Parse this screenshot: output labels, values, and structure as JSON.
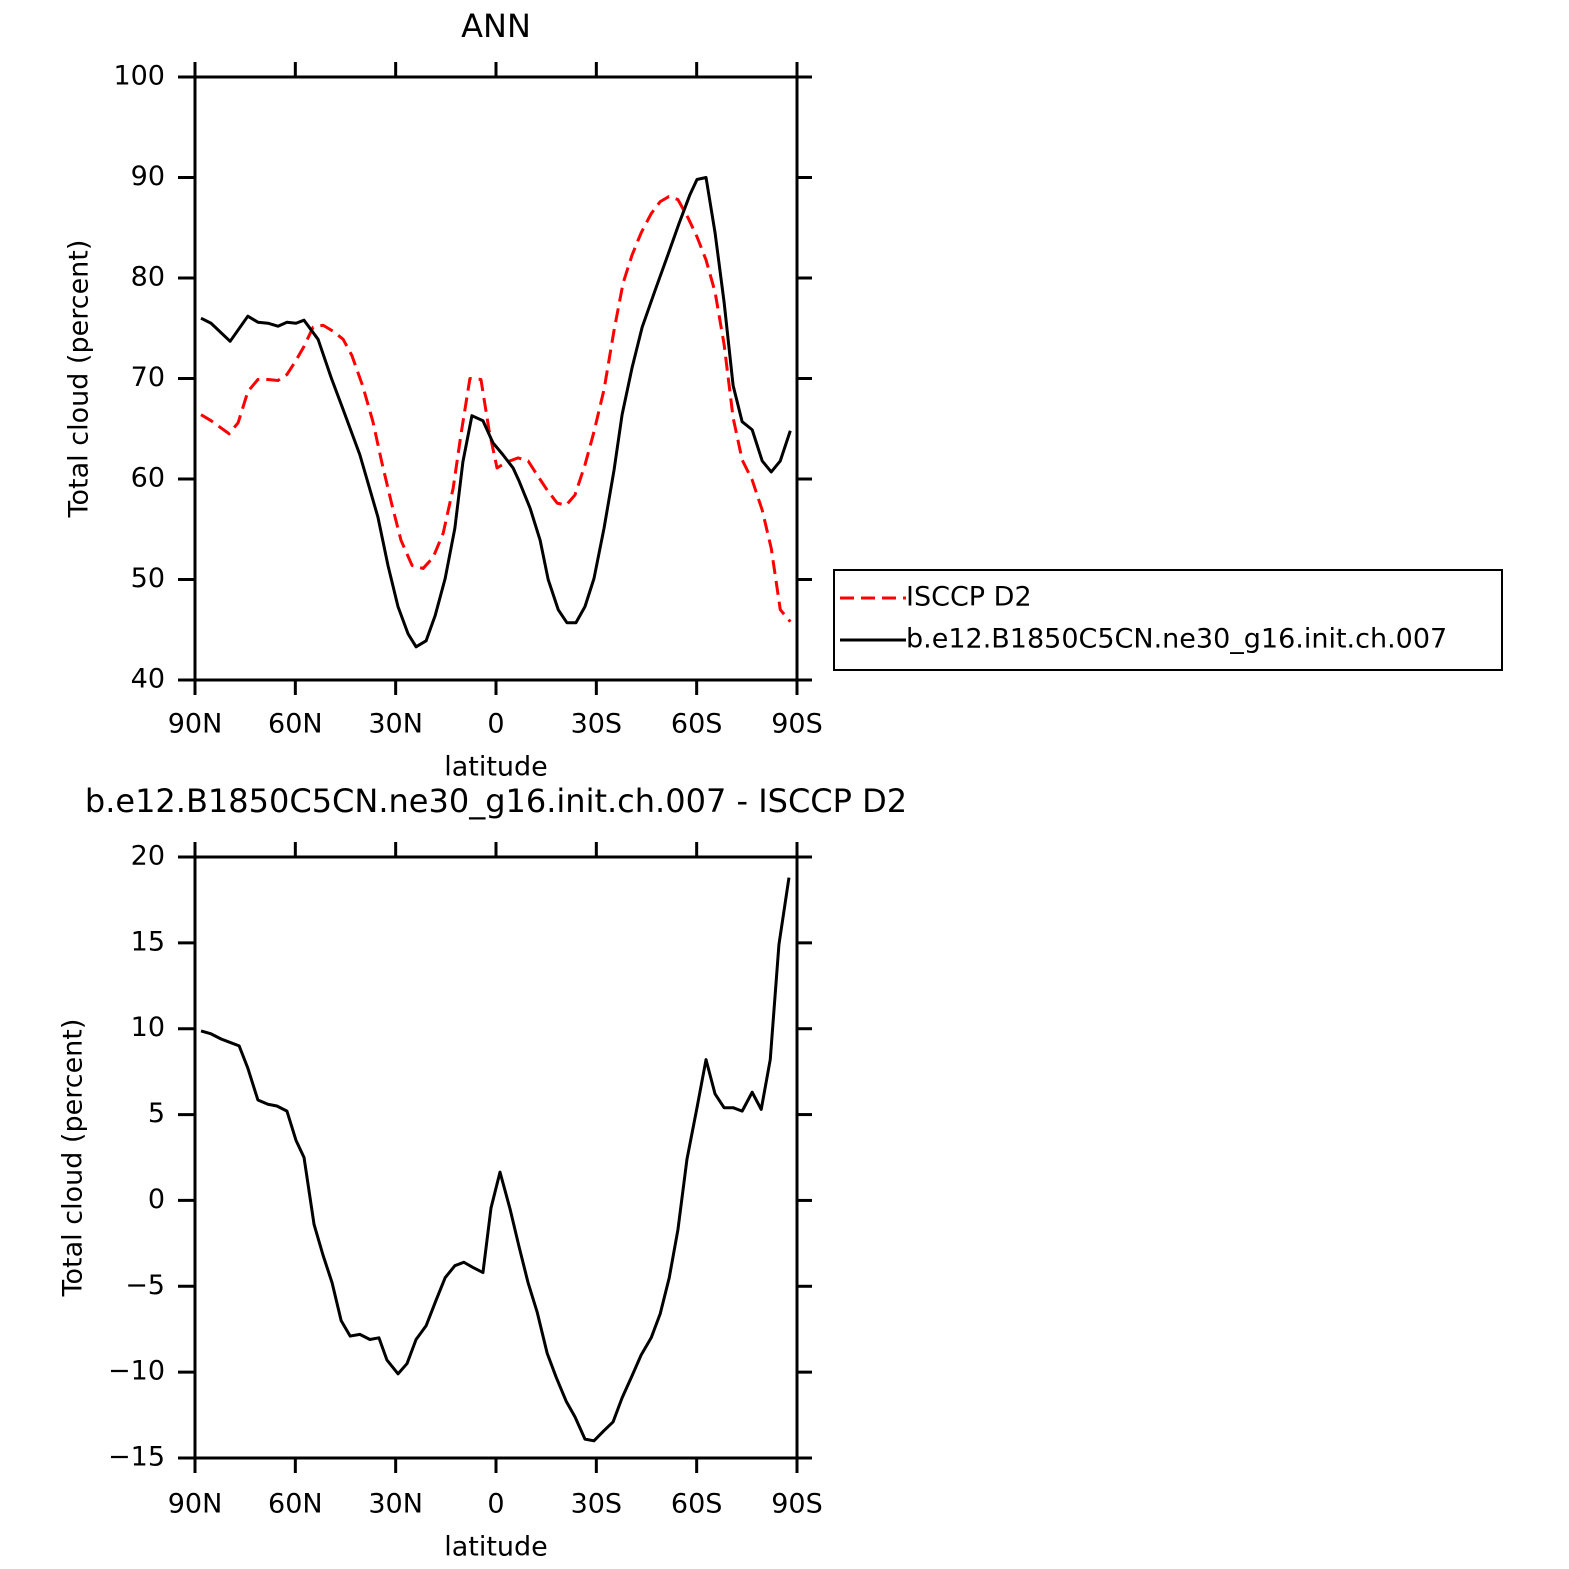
{
  "chart_data": [
    {
      "type": "line",
      "title": "ANN",
      "xlabel": "latitude",
      "ylabel": "Total cloud (percent)",
      "xlim": [
        90,
        -90
      ],
      "xticks": [
        {
          "value": 90,
          "label": "90N"
        },
        {
          "value": 60,
          "label": "60N"
        },
        {
          "value": 30,
          "label": "30N"
        },
        0,
        {
          "value": -30,
          "label": "30S"
        },
        {
          "value": -60,
          "label": "60S"
        },
        {
          "value": -90,
          "label": "90S"
        }
      ],
      "ylim": [
        40,
        100
      ],
      "yticks": [
        40,
        50,
        60,
        70,
        80,
        90,
        100
      ],
      "legend": "right",
      "series": [
        {
          "name": "ISCCP D2",
          "color": "#ff0000",
          "dashed": true,
          "x": [
            88.2,
            85.2,
            79.8,
            77.1,
            74.2,
            71.2,
            68.2,
            65.2,
            62.5,
            59.8,
            57.4,
            54.7,
            51.7,
            48.7,
            45.7,
            43.1,
            39.8,
            36.8,
            34.1,
            31.1,
            28.4,
            25.1,
            21.8,
            18.8,
            15.8,
            12.8,
            10.4,
            7.8,
            4.5,
            2.1,
            -0.3,
            -3.3,
            -6.6,
            -9.6,
            -12.3,
            -15.3,
            -18.3,
            -21.0,
            -23.6,
            -26.6,
            -29.3,
            -32.3,
            -35.3,
            -38.0,
            -40.7,
            -43.4,
            -46.4,
            -49.1,
            -51.7,
            -54.4,
            -57.4,
            -60.1,
            -62.8,
            -65.5,
            -68.2,
            -70.9,
            -73.6,
            -76.6,
            -79.6,
            -82.3,
            -85.0,
            -88.0
          ],
          "values": [
            66.4,
            65.8,
            64.5,
            65.6,
            68.7,
            69.9,
            69.9,
            69.8,
            70.4,
            71.8,
            73.2,
            75.1,
            75.3,
            74.7,
            73.9,
            72.3,
            69.2,
            65.7,
            61.6,
            57.4,
            53.9,
            51.4,
            51.1,
            52.2,
            54.6,
            59.1,
            64.6,
            70.0,
            69.9,
            64.9,
            61.1,
            61.7,
            62.1,
            61.8,
            60.4,
            58.9,
            57.6,
            57.4,
            58.4,
            61.4,
            64.7,
            68.9,
            74.8,
            79.5,
            82.3,
            84.5,
            86.4,
            87.6,
            88.1,
            87.8,
            86.0,
            84.1,
            81.8,
            78.6,
            73.4,
            66.1,
            61.9,
            59.9,
            56.9,
            53.1,
            47.0,
            45.8
          ]
        },
        {
          "name": "b.e12.B1850C5CN.ne30_g16.init.ch.007",
          "color": "#000000",
          "dashed": false,
          "x": [
            88.2,
            85.2,
            79.5,
            74.2,
            71.2,
            68.2,
            65.2,
            62.5,
            59.8,
            57.4,
            53.2,
            49.3,
            45.7,
            40.7,
            35.3,
            32.3,
            29.3,
            26.3,
            23.9,
            20.9,
            18.2,
            15.2,
            12.3,
            9.9,
            7.2,
            3.9,
            0.9,
            -2.1,
            -5.1,
            -6.9,
            -10.2,
            -13.2,
            -15.6,
            -18.6,
            -21.2,
            -23.9,
            -26.6,
            -29.3,
            -32.3,
            -35.3,
            -37.7,
            -40.7,
            -43.7,
            -47.6,
            -51.4,
            -54.7,
            -58.0,
            -60.1,
            -62.8,
            -65.5,
            -68.2,
            -70.9,
            -73.6,
            -76.6,
            -79.6,
            -82.3,
            -85.0,
            -88.0
          ],
          "values": [
            76.0,
            75.5,
            73.7,
            76.2,
            75.6,
            75.5,
            75.2,
            75.6,
            75.5,
            75.8,
            73.9,
            70.1,
            66.9,
            62.4,
            56.2,
            51.4,
            47.3,
            44.6,
            43.3,
            43.9,
            46.4,
            50.1,
            55.1,
            61.7,
            66.3,
            65.8,
            63.6,
            62.4,
            61.1,
            59.8,
            57.1,
            53.9,
            50.0,
            47.0,
            45.7,
            45.7,
            47.3,
            50.1,
            55.1,
            60.9,
            66.4,
            71.1,
            75.1,
            78.8,
            82.3,
            85.4,
            88.3,
            89.8,
            90.0,
            84.5,
            77.6,
            69.3,
            65.7,
            64.9,
            61.8,
            60.7,
            61.8,
            64.8
          ]
        }
      ]
    },
    {
      "type": "line",
      "title": "b.e12.B1850C5CN.ne30_g16.init.ch.007 - ISCCP D2",
      "xlabel": "latitude",
      "ylabel": "Total cloud (percent)",
      "xlim": [
        90,
        -90
      ],
      "xticks": [
        {
          "value": 90,
          "label": "90N"
        },
        {
          "value": 60,
          "label": "60N"
        },
        {
          "value": 30,
          "label": "30N"
        },
        0,
        {
          "value": -30,
          "label": "30S"
        },
        {
          "value": -60,
          "label": "60S"
        },
        {
          "value": -90,
          "label": "90S"
        }
      ],
      "ylim": [
        -15,
        20
      ],
      "yticks": [
        {
          "value": -15,
          "label": "−15"
        },
        {
          "value": -10,
          "label": "−10"
        },
        {
          "value": -5,
          "label": "−5"
        },
        0,
        5,
        10,
        15,
        20
      ],
      "x": [
        88.2,
        85.2,
        82.2,
        79.5,
        76.8,
        74.2,
        71.2,
        68.2,
        65.5,
        62.5,
        59.8,
        57.4,
        54.4,
        51.7,
        49.0,
        46.3,
        43.6,
        40.7,
        37.7,
        35.0,
        32.6,
        29.3,
        26.6,
        23.9,
        20.9,
        17.9,
        15.2,
        12.3,
        9.6,
        6.9,
        3.9,
        1.5,
        -1.2,
        -4.2,
        -6.9,
        -9.6,
        -12.3,
        -15.3,
        -18.0,
        -21.0,
        -23.6,
        -26.6,
        -29.3,
        -32.3,
        -35.0,
        -37.7,
        -40.7,
        -43.4,
        -46.4,
        -49.1,
        -51.8,
        -54.4,
        -57.1,
        -60.1,
        -62.8,
        -65.5,
        -68.2,
        -70.9,
        -73.6,
        -76.6,
        -79.3,
        -82.0,
        -84.6,
        -87.6
      ],
      "series": [
        {
          "color": "#000000",
          "dashed": false,
          "values": [
            9.87,
            9.7,
            9.4,
            9.2,
            9.0,
            7.7,
            5.85,
            5.6,
            5.5,
            5.2,
            3.5,
            2.5,
            -1.4,
            -3.2,
            -4.8,
            -7.0,
            -7.9,
            -7.8,
            -8.1,
            -8.0,
            -9.3,
            -10.1,
            -9.5,
            -8.1,
            -7.3,
            -5.8,
            -4.5,
            -3.8,
            -3.6,
            -3.9,
            -4.2,
            -0.45,
            1.65,
            -0.5,
            -2.7,
            -4.8,
            -6.5,
            -8.9,
            -10.3,
            -11.7,
            -12.6,
            -13.9,
            -14.0,
            -13.4,
            -12.9,
            -11.5,
            -10.2,
            -9.0,
            -8.0,
            -6.6,
            -4.5,
            -1.7,
            2.4,
            5.4,
            8.2,
            6.2,
            5.4,
            5.4,
            5.2,
            6.3,
            5.3,
            8.2,
            14.9,
            18.8
          ]
        }
      ]
    }
  ]
}
